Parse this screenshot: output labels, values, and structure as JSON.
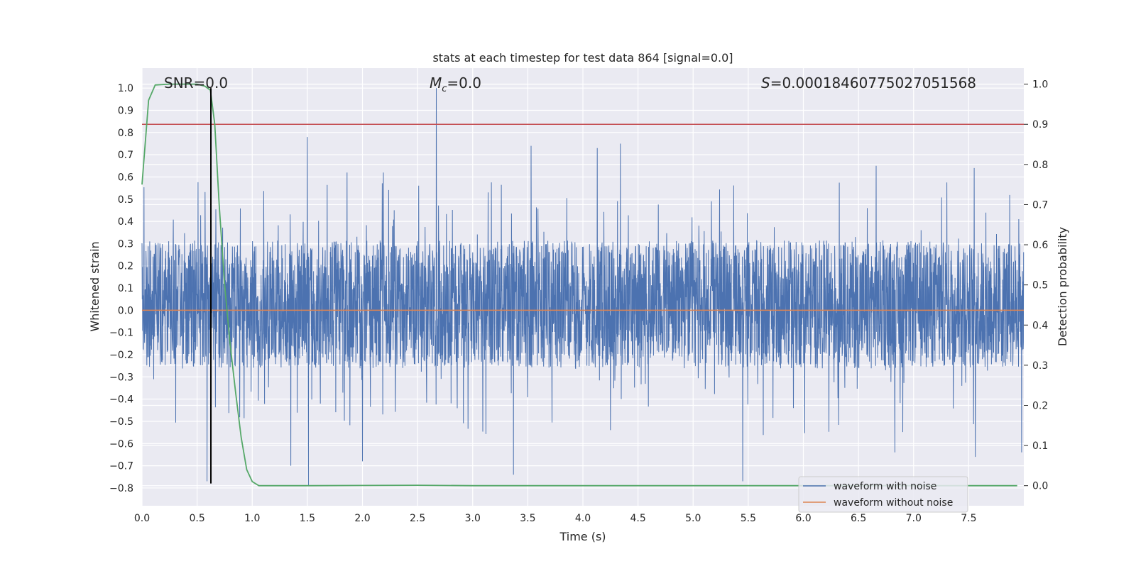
{
  "chart_data": {
    "type": "line",
    "title": "stats at each timestep for test data 864 [signal=0.0]",
    "xlabel": "Time (s)",
    "ylabel_left": "Whitened strain",
    "ylabel_right": "Detection probability",
    "xlim": [
      0.0,
      8.0
    ],
    "ylim_left": [
      -0.88,
      1.09
    ],
    "ylim_right": [
      -0.05,
      1.04
    ],
    "x_ticks": [
      0.0,
      0.5,
      1.0,
      1.5,
      2.0,
      2.5,
      3.0,
      3.5,
      4.0,
      4.5,
      5.0,
      5.5,
      6.0,
      6.5,
      7.0,
      7.5
    ],
    "x_tick_labels": [
      "0.0",
      "0.5",
      "1.0",
      "1.5",
      "2.0",
      "2.5",
      "3.0",
      "3.5",
      "4.0",
      "4.5",
      "5.0",
      "5.5",
      "6.0",
      "6.5",
      "7.0",
      "7.5"
    ],
    "y_left_ticks": [
      -0.8,
      -0.7,
      -0.6,
      -0.5,
      -0.4,
      -0.3,
      -0.2,
      -0.1,
      0.0,
      0.1,
      0.2,
      0.3,
      0.4,
      0.5,
      0.6,
      0.7,
      0.8,
      0.9,
      1.0
    ],
    "y_left_tick_labels": [
      "−0.8",
      "−0.7",
      "−0.6",
      "−0.5",
      "−0.4",
      "−0.3",
      "−0.2",
      "−0.1",
      "0.0",
      "0.1",
      "0.2",
      "0.3",
      "0.4",
      "0.5",
      "0.6",
      "0.7",
      "0.8",
      "0.9",
      "1.0"
    ],
    "y_right_ticks": [
      0.0,
      0.1,
      0.2,
      0.3,
      0.4,
      0.5,
      0.6,
      0.7,
      0.8,
      0.9,
      1.0
    ],
    "y_right_tick_labels": [
      "0.0",
      "0.1",
      "0.2",
      "0.3",
      "0.4",
      "0.5",
      "0.6",
      "0.7",
      "0.8",
      "0.9",
      "1.0"
    ],
    "annotations": {
      "snr": "SNR=0.0",
      "mc_symbol": "M",
      "mc_sub": "c",
      "mc_value": "=0.0",
      "s_symbol": "S",
      "s_value": "=0.00018460775027051568"
    },
    "noisy_waveform": {
      "name": "waveform with noise",
      "color": "#4c72b0",
      "dense_band": [
        -0.25,
        0.3
      ],
      "peaks": [
        {
          "x": 1.5,
          "y": 0.78
        },
        {
          "x": 2.67,
          "y": 1.0
        },
        {
          "x": 3.53,
          "y": 0.74
        },
        {
          "x": 4.13,
          "y": 0.73
        },
        {
          "x": 4.34,
          "y": 0.75
        },
        {
          "x": 6.66,
          "y": 0.65
        },
        {
          "x": 7.55,
          "y": 0.64
        },
        {
          "x": 2.19,
          "y": 0.62
        },
        {
          "x": 1.86,
          "y": 0.62
        }
      ],
      "troughs": [
        {
          "x": 0.59,
          "y": -0.77
        },
        {
          "x": 1.51,
          "y": -0.79
        },
        {
          "x": 3.37,
          "y": -0.74
        },
        {
          "x": 5.45,
          "y": -0.77
        },
        {
          "x": 1.35,
          "y": -0.7
        },
        {
          "x": 2.0,
          "y": -0.68
        },
        {
          "x": 7.56,
          "y": -0.66
        },
        {
          "x": 7.98,
          "y": -0.64
        },
        {
          "x": 6.83,
          "y": -0.64
        }
      ]
    },
    "clean_waveform": {
      "name": "waveform without noise",
      "color": "#dd8452",
      "value": 0.0
    },
    "detection_probability": {
      "color": "#55a868",
      "x": [
        0.0,
        0.06,
        0.12,
        0.25,
        0.5,
        0.57,
        0.62,
        0.66,
        0.7,
        0.75,
        0.8,
        0.85,
        0.9,
        0.95,
        1.0,
        1.06,
        1.5,
        2.0,
        2.5,
        3.0,
        4.0,
        5.0,
        6.0,
        7.0,
        7.94
      ],
      "values": [
        0.75,
        0.96,
        0.998,
        1.0,
        1.0,
        0.995,
        0.985,
        0.9,
        0.7,
        0.5,
        0.35,
        0.23,
        0.12,
        0.04,
        0.01,
        0.0,
        0.0,
        0.0005,
        0.001,
        0.0,
        0.0,
        0.0,
        0.0,
        0.0,
        0.0
      ]
    },
    "threshold": {
      "color": "#c44e52",
      "value": 0.9
    },
    "marker_line": {
      "color": "#000000",
      "x": 0.625,
      "y_range": [
        -0.78,
        1.0
      ]
    },
    "legend_position": "lower-right"
  }
}
